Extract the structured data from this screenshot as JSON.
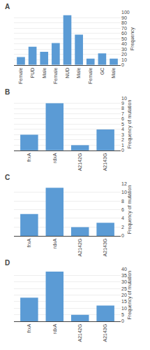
{
  "chart_data": [
    {
      "type": "bar",
      "title": "A",
      "categories": [
        "Female",
        "PUD",
        "Male",
        "Female",
        "NUD",
        "Male",
        "Female",
        "GC",
        "Male"
      ],
      "values": [
        15,
        35,
        25,
        42,
        95,
        58,
        12,
        22,
        12
      ],
      "ylabel": "Frequency",
      "ylim": [
        0,
        100
      ],
      "yticks": [
        0,
        10,
        20,
        30,
        40,
        50,
        60,
        70,
        80,
        90,
        100
      ],
      "color": "#5B9BD5",
      "grid": true
    },
    {
      "type": "bar",
      "title": "B",
      "categories": [
        "frxA",
        "rdxA",
        "A2142G",
        "A2143G"
      ],
      "values": [
        3,
        9,
        1,
        4
      ],
      "ylabel": "Frequency of mutation",
      "ylim": [
        0,
        10
      ],
      "yticks": [
        0,
        1,
        2,
        3,
        4,
        5,
        6,
        7,
        8,
        9,
        10
      ],
      "color": "#5B9BD5",
      "grid": true
    },
    {
      "type": "bar",
      "title": "C",
      "categories": [
        "frxA",
        "rdxA",
        "A2142G",
        "A2143G"
      ],
      "values": [
        5,
        11,
        2,
        3
      ],
      "ylabel": "Frequency of mutation",
      "ylim": [
        0,
        12
      ],
      "yticks": [
        0,
        2,
        4,
        6,
        8,
        10,
        12
      ],
      "color": "#5B9BD5",
      "grid": true
    },
    {
      "type": "bar",
      "title": "D",
      "categories": [
        "frxA",
        "rdxA",
        "A2142G",
        "A2143G"
      ],
      "values": [
        18,
        38,
        5,
        12
      ],
      "ylabel": "Frequency of mutation",
      "ylim": [
        0,
        40
      ],
      "yticks": [
        0,
        5,
        10,
        15,
        20,
        25,
        30,
        35,
        40
      ],
      "color": "#5B9BD5",
      "grid": true
    }
  ]
}
